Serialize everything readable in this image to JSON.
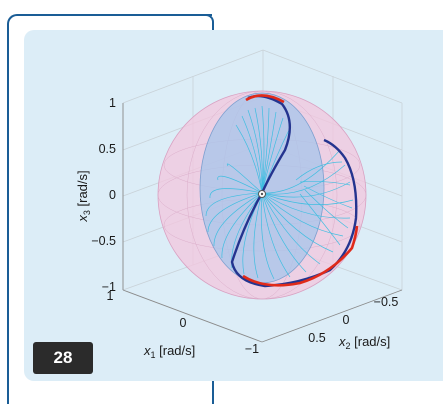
{
  "figure": {
    "badge": "28",
    "axes": {
      "x1": {
        "symbol": "x",
        "sub": "1",
        "unit": " [rad/s]",
        "ticks": [
          "1",
          "0",
          "−1"
        ]
      },
      "x2": {
        "symbol": "x",
        "sub": "2",
        "unit": " [rad/s]",
        "ticks": [
          "−0.5",
          "0",
          "0.5"
        ]
      },
      "x3": {
        "symbol": "x",
        "sub": "3",
        "unit": " [rad/s]",
        "ticks": [
          "1",
          "0.5",
          "0",
          "−0.5",
          "−1"
        ]
      }
    },
    "colors": {
      "frame": "#1a5d96",
      "panel": "#dcedf7",
      "outer_sphere": "#f3c6de",
      "inner_ellipsoid": "#aac6ea",
      "trajectory_dark": "#24348f",
      "trajectory_red": "#e02a1a",
      "mesh": "#33bde0"
    }
  }
}
